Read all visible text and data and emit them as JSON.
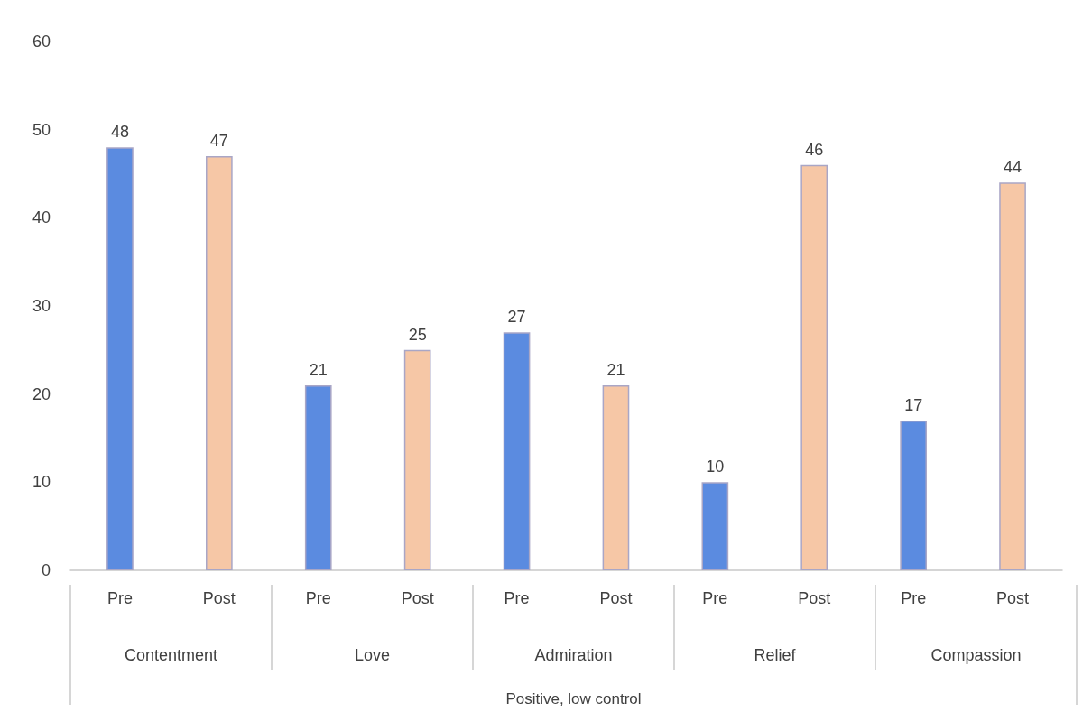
{
  "chart_data": {
    "type": "bar",
    "categories": [
      "Pre",
      "Post",
      "Pre",
      "Post",
      "Pre",
      "Post",
      "Pre",
      "Post",
      "Pre",
      "Post"
    ],
    "values": [
      48,
      47,
      21,
      25,
      27,
      21,
      10,
      46,
      17,
      44
    ],
    "colors": [
      "#5b8be0",
      "#f6c7a6",
      "#5b8be0",
      "#f6c7a6",
      "#5b8be0",
      "#f6c7a6",
      "#5b8be0",
      "#f6c7a6",
      "#5b8be0",
      "#f6c7a6"
    ],
    "annotations": [
      "Contentment",
      "Love",
      "Admiration",
      "Relief",
      "Compassion",
      "Positive, low control"
    ],
    "ylim": [
      0,
      60
    ],
    "yticks": [
      0,
      10,
      20,
      30,
      40,
      50,
      60
    ],
    "data_labels": true,
    "grid": false
  }
}
